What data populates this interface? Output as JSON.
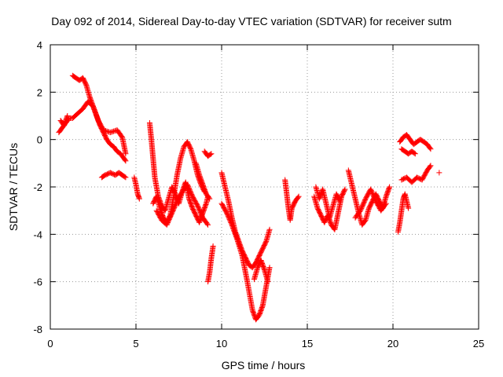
{
  "chart_data": {
    "type": "scatter",
    "title": "Day 092 of 2014, Sidereal Day-to-day VTEC variation (SDTVAR) for receiver sutm",
    "xlabel": "GPS time / hours",
    "ylabel": "SDTVAR / TECUs",
    "xlim": [
      0,
      25
    ],
    "ylim": [
      -8,
      4
    ],
    "x_ticks": [
      0,
      5,
      10,
      15,
      20,
      25
    ],
    "y_ticks": [
      -8,
      -6,
      -4,
      -2,
      0,
      2,
      4
    ],
    "x_tick_labels": [
      "0",
      "5",
      "10",
      "15",
      "20",
      "25"
    ],
    "y_tick_labels": [
      "-8",
      "-6",
      "-4",
      "-2",
      "0",
      "2",
      "4"
    ],
    "grid": true,
    "marker": "plus",
    "color": "#ff0000",
    "segments": [
      {
        "x": [
          0.5,
          0.7,
          0.9,
          1.1,
          1.3,
          1.6,
          1.9,
          2.2,
          2.5,
          2.8,
          3.1,
          3.5,
          3.9,
          4.2,
          4.4
        ],
        "y": [
          0.3,
          0.5,
          0.7,
          0.9,
          0.9,
          1.1,
          1.3,
          1.6,
          1.4,
          0.8,
          0.4,
          0.3,
          0.4,
          0.1,
          -0.6
        ]
      },
      {
        "x": [
          0.6,
          0.8,
          1.0
        ],
        "y": [
          0.8,
          0.6,
          1.0
        ]
      },
      {
        "x": [
          1.3,
          1.5,
          1.7,
          1.9,
          2.1,
          2.3,
          2.5,
          2.7,
          2.9,
          3.1,
          3.3,
          3.5,
          3.7,
          3.9,
          4.1,
          4.3,
          4.4
        ],
        "y": [
          2.7,
          2.6,
          2.5,
          2.6,
          2.3,
          1.8,
          1.4,
          1.0,
          0.6,
          0.3,
          0.0,
          -0.2,
          -0.3,
          -0.5,
          -0.6,
          -0.8,
          -0.9
        ]
      },
      {
        "x": [
          3.0,
          3.2,
          3.5,
          3.8,
          4.0,
          4.2,
          4.4
        ],
        "y": [
          -1.6,
          -1.5,
          -1.4,
          -1.5,
          -1.4,
          -1.5,
          -1.6
        ]
      },
      {
        "x": [
          4.9,
          5.0,
          5.1,
          5.2
        ],
        "y": [
          -1.6,
          -1.9,
          -2.3,
          -2.5
        ]
      },
      {
        "x": [
          5.8,
          5.9,
          6.0,
          6.1,
          6.3,
          6.5,
          6.7,
          6.9,
          7.1,
          7.3,
          7.5,
          7.7,
          7.9,
          8.1,
          8.3,
          8.5,
          8.7,
          8.9,
          9.1,
          9.2
        ],
        "y": [
          0.7,
          0.0,
          -0.8,
          -1.6,
          -2.4,
          -2.8,
          -3.0,
          -2.5,
          -2.0,
          -2.3,
          -2.7,
          -2.2,
          -1.8,
          -2.5,
          -2.9,
          -3.2,
          -3.5,
          -3.1,
          -2.7,
          -2.4
        ]
      },
      {
        "x": [
          6.0,
          6.2,
          6.4,
          6.6,
          6.8,
          7.0,
          7.2,
          7.4,
          7.6,
          7.8,
          8.0,
          8.2,
          8.4,
          8.6,
          8.8,
          9.0
        ],
        "y": [
          -2.7,
          -2.4,
          -2.9,
          -3.3,
          -3.5,
          -3.2,
          -2.4,
          -1.5,
          -0.8,
          -0.3,
          -0.1,
          -0.4,
          -0.9,
          -1.5,
          -1.9,
          -2.2
        ]
      },
      {
        "x": [
          6.2,
          6.5,
          6.8,
          7.1,
          7.4,
          7.7,
          8.0,
          8.3,
          8.6,
          8.9,
          9.2
        ],
        "y": [
          -3.0,
          -3.4,
          -3.6,
          -3.1,
          -2.6,
          -2.2,
          -1.9,
          -2.4,
          -2.8,
          -3.3,
          -3.6
        ]
      },
      {
        "x": [
          8.5,
          8.7,
          8.9,
          9.1,
          9.3
        ],
        "y": [
          -1.0,
          -1.5,
          -1.9,
          -2.3,
          -2.5
        ]
      },
      {
        "x": [
          9.0,
          9.2,
          9.4
        ],
        "y": [
          -0.5,
          -0.7,
          -0.6
        ]
      },
      {
        "x": [
          9.2,
          9.3,
          9.4,
          9.5
        ],
        "y": [
          -6.0,
          -5.6,
          -5.0,
          -4.5
        ]
      },
      {
        "x": [
          10.0,
          10.2,
          10.4,
          10.6,
          10.8,
          11.0,
          11.2,
          11.4,
          11.6,
          11.8,
          12.0,
          12.2,
          12.4,
          12.6,
          12.8
        ],
        "y": [
          -1.4,
          -2.0,
          -2.6,
          -3.3,
          -3.9,
          -4.3,
          -4.7,
          -5.0,
          -5.3,
          -5.4,
          -5.2,
          -4.9,
          -4.6,
          -4.3,
          -3.8
        ]
      },
      {
        "x": [
          10.0,
          10.3,
          10.6,
          10.9,
          11.2,
          11.5,
          11.8,
          12.0,
          12.2,
          12.4,
          12.6,
          12.8
        ],
        "y": [
          -2.7,
          -3.1,
          -3.6,
          -4.2,
          -4.9,
          -6.0,
          -7.2,
          -7.6,
          -7.4,
          -7.0,
          -6.2,
          -5.4
        ]
      },
      {
        "x": [
          11.9,
          12.1,
          12.3,
          12.5,
          12.7
        ],
        "y": [
          -5.9,
          -5.4,
          -5.1,
          -5.5,
          -6.0
        ]
      },
      {
        "x": [
          13.7,
          13.8,
          13.9,
          14.0,
          14.1,
          14.3,
          14.5
        ],
        "y": [
          -1.7,
          -2.3,
          -2.9,
          -3.4,
          -2.9,
          -2.6,
          -2.4
        ]
      },
      {
        "x": [
          15.4,
          15.6,
          15.8,
          16.0,
          16.2,
          16.4,
          16.6,
          16.8,
          17.0,
          17.2
        ],
        "y": [
          -2.4,
          -2.9,
          -3.2,
          -3.5,
          -3.2,
          -3.6,
          -3.8,
          -3.1,
          -2.4,
          -2.1
        ]
      },
      {
        "x": [
          15.5,
          15.7,
          15.9,
          16.1,
          16.3,
          16.5,
          16.7,
          16.9
        ],
        "y": [
          -2.0,
          -2.5,
          -2.1,
          -2.7,
          -3.3,
          -2.8,
          -2.3,
          -2.6
        ]
      },
      {
        "x": [
          17.4,
          17.6,
          17.8,
          18.0,
          18.2,
          18.4,
          18.6,
          18.8,
          19.0,
          19.2,
          19.4,
          19.6,
          19.8
        ],
        "y": [
          -1.3,
          -1.9,
          -2.5,
          -3.1,
          -3.6,
          -3.4,
          -2.9,
          -2.6,
          -2.3,
          -2.6,
          -2.9,
          -2.4,
          -2.0
        ]
      },
      {
        "x": [
          17.8,
          18.1,
          18.4,
          18.7,
          19.0,
          19.3,
          19.6
        ],
        "y": [
          -3.3,
          -3.0,
          -2.5,
          -2.1,
          -2.6,
          -3.0,
          -2.7
        ]
      },
      {
        "x": [
          20.3,
          20.4,
          20.5,
          20.6,
          20.7,
          20.8,
          20.9
        ],
        "y": [
          -3.9,
          -3.5,
          -3.0,
          -2.5,
          -2.3,
          -2.6,
          -2.9
        ]
      },
      {
        "x": [
          20.4,
          20.6,
          20.8,
          21.0,
          21.2,
          21.4,
          21.6,
          21.8,
          22.0,
          22.2
        ],
        "y": [
          -0.1,
          0.1,
          0.2,
          0.0,
          -0.2,
          -0.1,
          0.0,
          -0.1,
          -0.2,
          -0.4
        ]
      },
      {
        "x": [
          20.5,
          20.7,
          20.9,
          21.1,
          21.3
        ],
        "y": [
          -0.4,
          -0.5,
          -0.6,
          -0.5,
          -0.6
        ]
      },
      {
        "x": [
          20.5,
          20.8,
          21.1,
          21.4,
          21.7,
          22.0,
          22.2
        ],
        "y": [
          -1.7,
          -1.6,
          -1.8,
          -1.6,
          -1.7,
          -1.3,
          -1.1
        ]
      },
      {
        "x": [
          22.7
        ],
        "y": [
          -1.4
        ]
      }
    ]
  }
}
